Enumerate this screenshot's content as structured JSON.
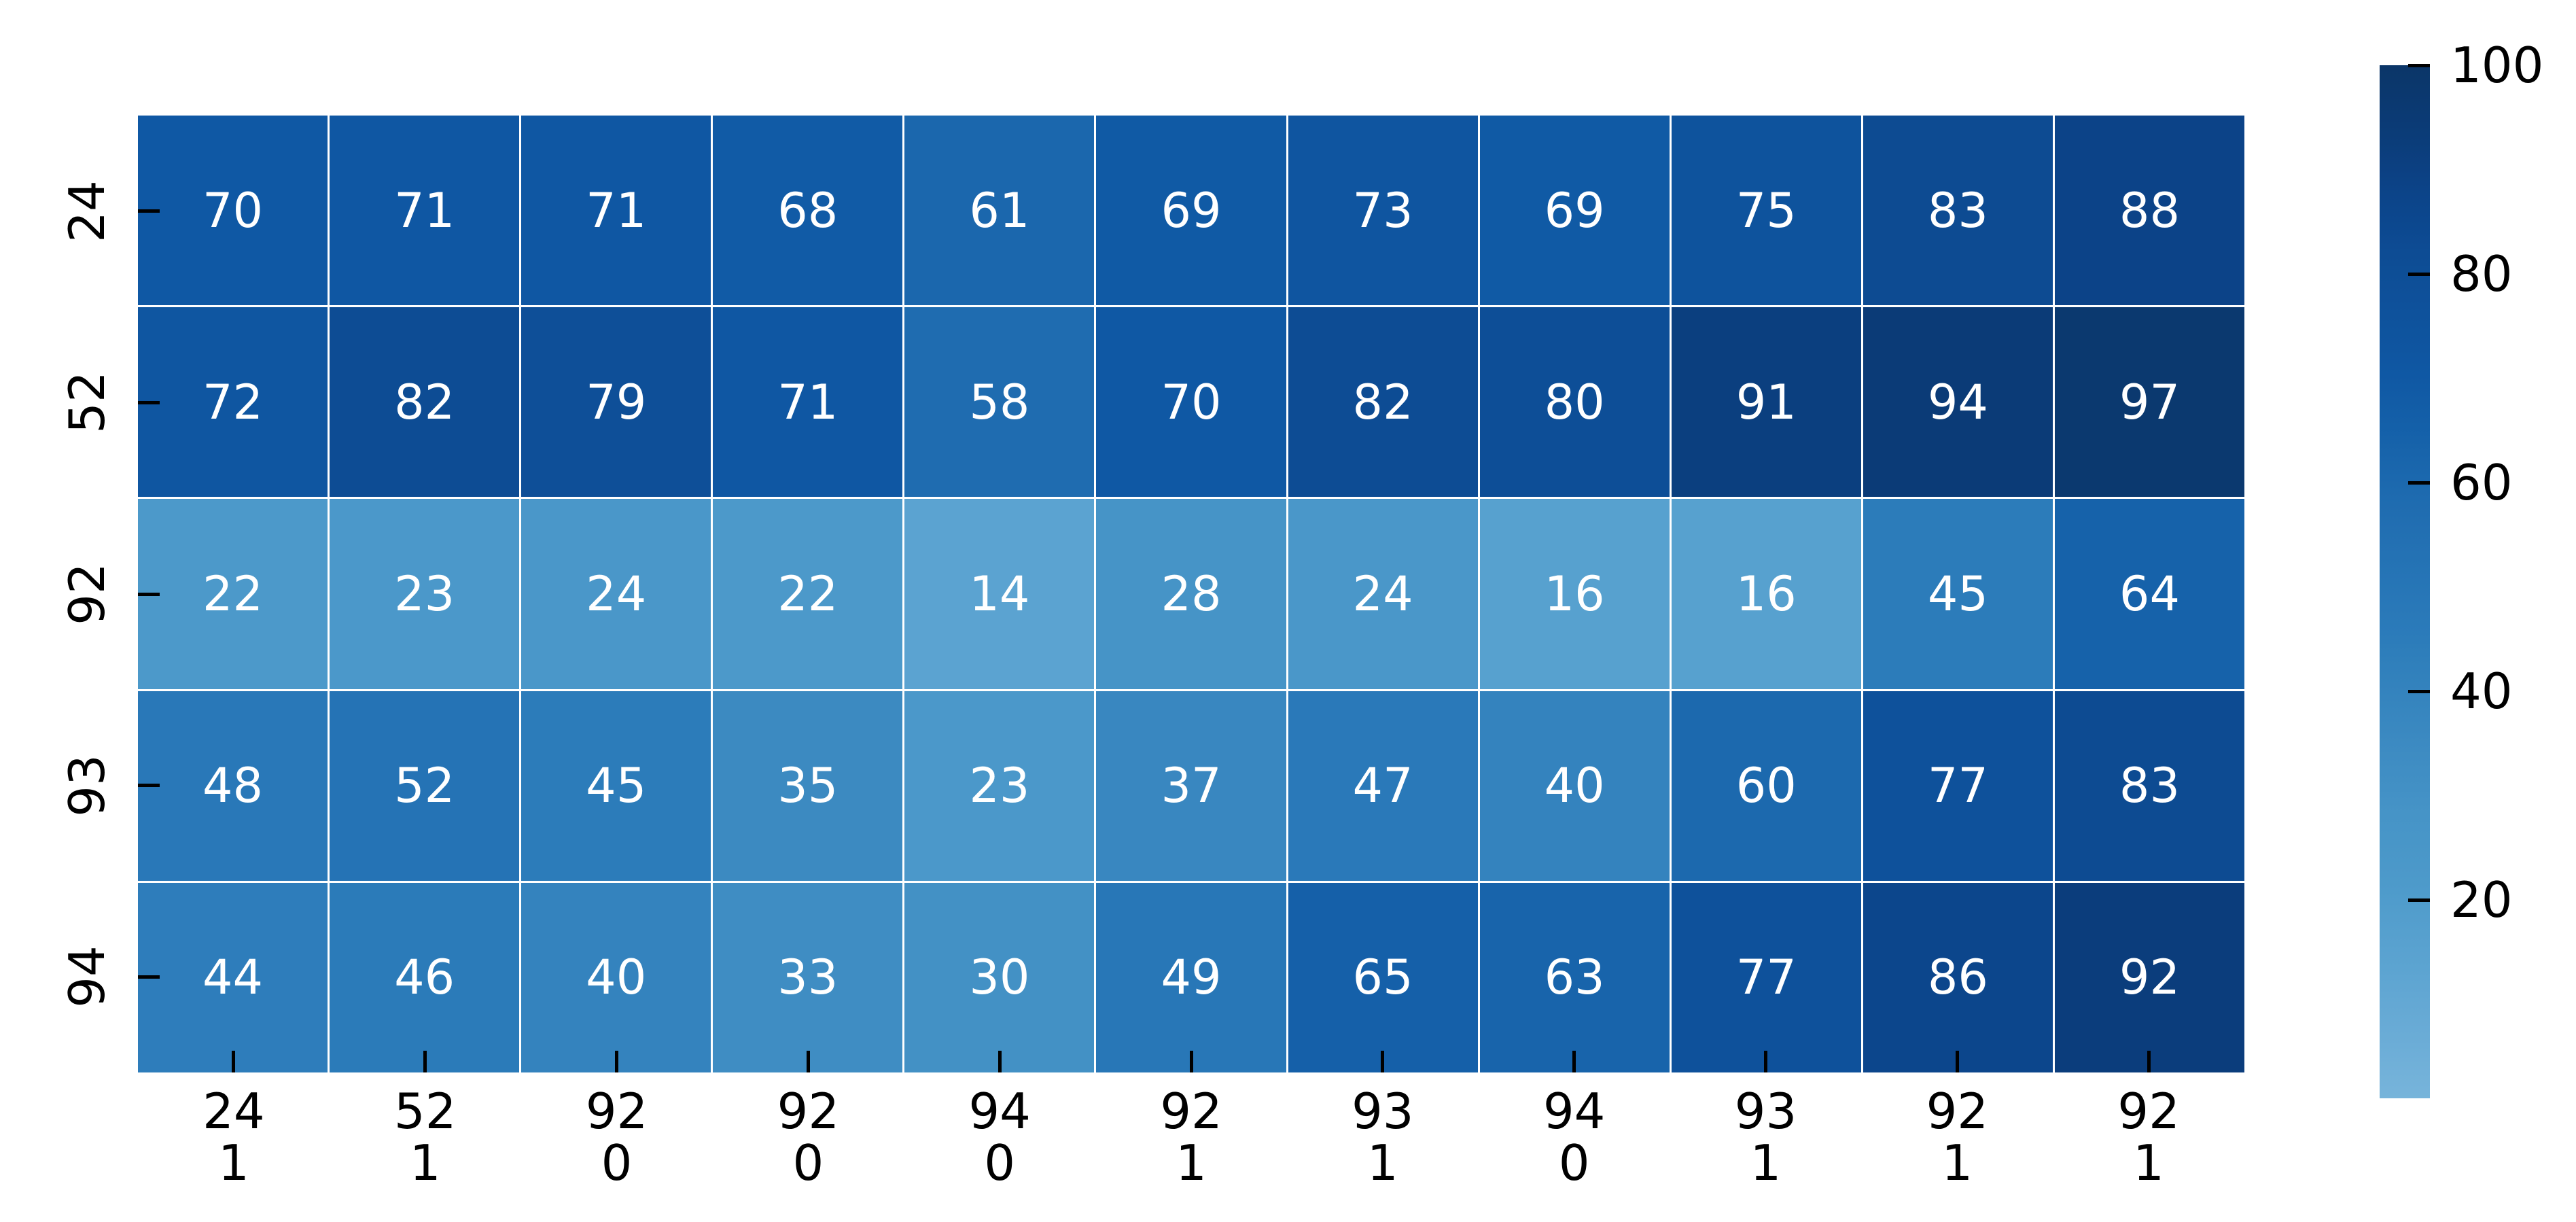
{
  "chart_data": {
    "type": "heatmap",
    "title": "",
    "xlabel": "",
    "ylabel": "",
    "rows": [
      "24",
      "52",
      "92",
      "93",
      "94"
    ],
    "columns": [
      [
        "24",
        "1"
      ],
      [
        "52",
        "1"
      ],
      [
        "92",
        "0"
      ],
      [
        "92",
        "0"
      ],
      [
        "94",
        "0"
      ],
      [
        "92",
        "1"
      ],
      [
        "93",
        "1"
      ],
      [
        "94",
        "0"
      ],
      [
        "93",
        "1"
      ],
      [
        "92",
        "1"
      ],
      [
        "92",
        "1"
      ]
    ],
    "values": [
      [
        70,
        71,
        71,
        68,
        61,
        69,
        73,
        69,
        75,
        83,
        88
      ],
      [
        72,
        82,
        79,
        71,
        58,
        70,
        82,
        80,
        91,
        94,
        97
      ],
      [
        22,
        23,
        24,
        22,
        14,
        28,
        24,
        16,
        16,
        45,
        64
      ],
      [
        48,
        52,
        45,
        35,
        23,
        37,
        47,
        40,
        60,
        77,
        83
      ],
      [
        44,
        46,
        40,
        33,
        30,
        49,
        65,
        63,
        77,
        86,
        92
      ]
    ],
    "annotation_text_color": "#ffffff",
    "grid_line_color": "#ffffff",
    "background_color": "#ffffff",
    "axis_text_color": "#000000",
    "colormap_stops": [
      [
        0,
        "#79b5db"
      ],
      [
        14,
        "#5ba3d1"
      ],
      [
        22,
        "#4c99ca"
      ],
      [
        28,
        "#4694c7"
      ],
      [
        35,
        "#3c8ac1"
      ],
      [
        45,
        "#2c7cba"
      ],
      [
        52,
        "#2573b5"
      ],
      [
        58,
        "#1f6cb0"
      ],
      [
        64,
        "#1662aa"
      ],
      [
        70,
        "#0f58a4"
      ],
      [
        76,
        "#0e529c"
      ],
      [
        82,
        "#0d4c94"
      ],
      [
        88,
        "#0c4388"
      ],
      [
        93,
        "#0b3c79"
      ],
      [
        100,
        "#0b3668"
      ]
    ],
    "colorbar": {
      "position": "right",
      "ticks": [
        20,
        40,
        60,
        80,
        100
      ],
      "vmin": 1,
      "vmax": 100
    },
    "legend": null,
    "grid": false
  }
}
